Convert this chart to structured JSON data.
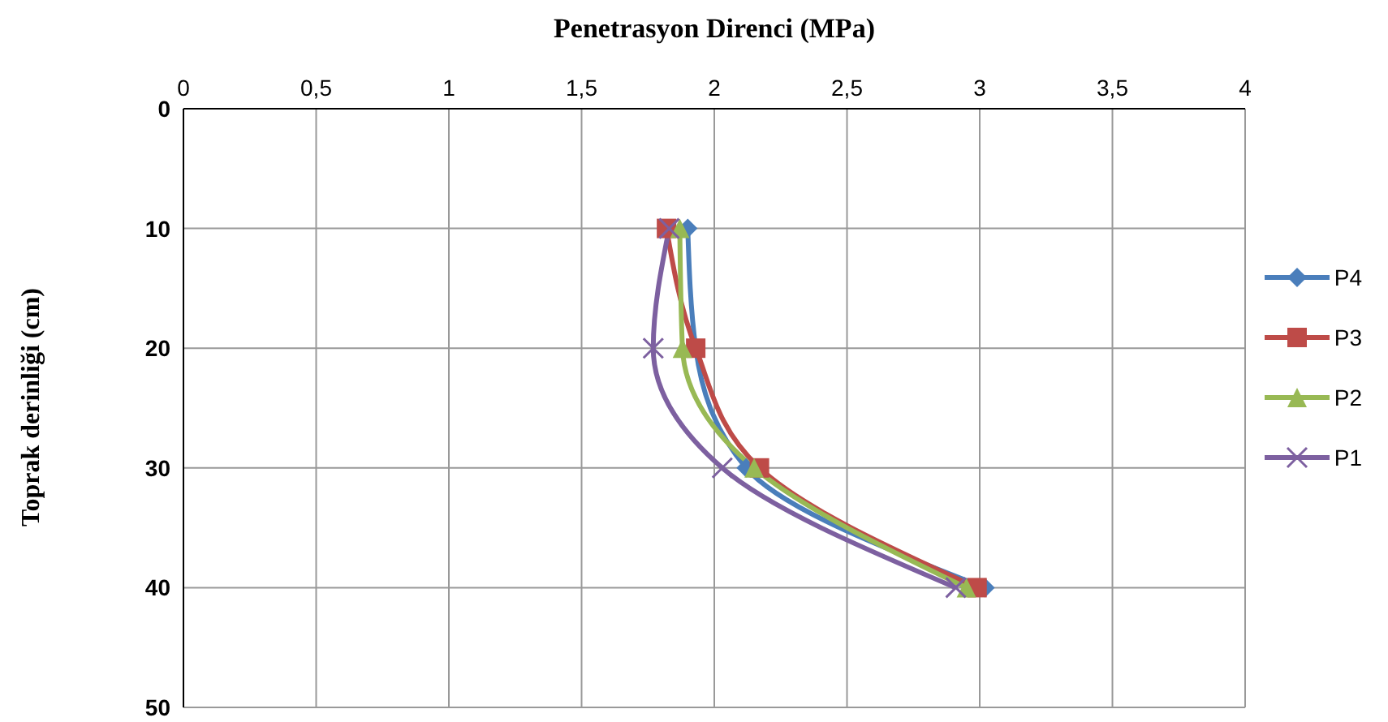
{
  "chart_data": {
    "type": "line",
    "orientation": "horizontal",
    "xlabel": "Penetrasyon Direnci (MPa)",
    "ylabel": "Toprak derinliği (cm)",
    "x": [
      10,
      20,
      30,
      40
    ],
    "series": [
      {
        "name": "P4",
        "color": "#4a7ebb",
        "marker": "diamond",
        "values": [
          1.9,
          1.93,
          2.12,
          3.02
        ]
      },
      {
        "name": "P3",
        "color": "#be4b48",
        "marker": "square",
        "values": [
          1.82,
          1.93,
          2.17,
          2.99
        ]
      },
      {
        "name": "P2",
        "color": "#98b954",
        "marker": "triangle",
        "values": [
          1.87,
          1.88,
          2.15,
          2.95
        ]
      },
      {
        "name": "P1",
        "color": "#7d60a0",
        "marker": "cross",
        "values": [
          1.83,
          1.77,
          2.03,
          2.91
        ]
      }
    ],
    "xlim": [
      0,
      4
    ],
    "xticks": [
      0,
      {
        "value": 0.5,
        "label": "0,5"
      },
      1,
      {
        "value": 1.5,
        "label": "1,5"
      },
      2,
      {
        "value": 2.5,
        "label": "2,5"
      },
      3,
      {
        "value": 3.5,
        "label": "3,5"
      },
      4
    ],
    "ylim": [
      50,
      0
    ],
    "yticks": [
      0,
      10,
      20,
      30,
      40,
      50
    ],
    "grid": true,
    "legend": "right",
    "line_style": "solid"
  }
}
